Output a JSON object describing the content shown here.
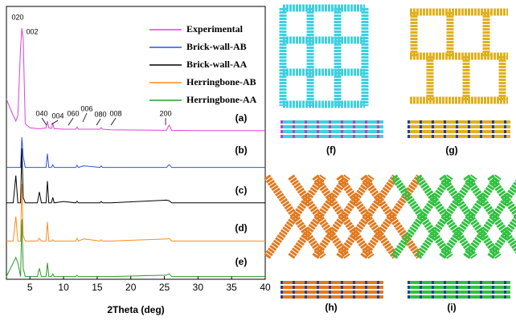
{
  "chart_data": {
    "type": "line",
    "x_label": "2Theta (deg)",
    "x": [
      1.5,
      2.5,
      2.9,
      3.2,
      3.6,
      3.8,
      4.0,
      4.3,
      5,
      6.1,
      6.4,
      6.7,
      7.4,
      7.6,
      7.8,
      8.2,
      8.4,
      8.6,
      10,
      11.8,
      12.0,
      12.2,
      13.0,
      15.4,
      15.6,
      15.8,
      17,
      25.3,
      25.7,
      26.1,
      30,
      40
    ],
    "series": [
      {
        "name": "Experimental",
        "color": "#e040e0",
        "values": [
          66,
          60,
          58,
          60,
          85,
          92,
          88,
          57,
          55.5,
          55.2,
          55.2,
          55.2,
          55.5,
          58,
          55.5,
          55.3,
          57,
          55.2,
          55,
          55,
          55.8,
          55,
          55,
          55,
          55.6,
          55,
          54.8,
          54.6,
          56.5,
          54.6,
          54.5,
          54.5
        ]
      },
      {
        "name": "Brick-wall-AB",
        "color": "#3050d8",
        "values": [
          41,
          41,
          41,
          41,
          41,
          52,
          45,
          41,
          41,
          41,
          41,
          41,
          41,
          46,
          41,
          41,
          42,
          41,
          41,
          41,
          41.8,
          41,
          41.6,
          41,
          41.5,
          41,
          41,
          41,
          42,
          41,
          41,
          41
        ]
      },
      {
        "name": "Brick-wall-AA",
        "color": "#000000",
        "values": [
          28,
          28,
          38,
          28,
          28,
          48,
          30,
          28,
          28,
          28,
          32,
          28,
          28,
          36,
          28,
          28,
          30,
          28,
          28.5,
          28,
          28.6,
          28,
          28,
          28,
          28.5,
          28,
          28,
          29,
          28.8,
          28,
          28,
          28
        ]
      },
      {
        "name": "Herringbone-AB",
        "color": "#ff8c1a",
        "values": [
          14,
          14,
          23,
          14,
          14,
          35,
          16,
          14,
          14,
          14,
          15,
          14,
          14,
          21,
          14,
          14,
          14.5,
          14,
          14,
          14,
          15,
          14,
          14.8,
          14,
          14.5,
          14,
          14,
          14.8,
          15,
          14,
          14,
          14
        ]
      },
      {
        "name": "Herringbone-AA",
        "color": "#2a9a2a",
        "values": [
          1,
          6,
          8,
          6,
          1,
          22,
          4,
          1,
          1,
          1,
          4,
          1,
          1,
          6,
          1,
          1,
          2,
          1,
          1,
          1,
          1.5,
          1,
          1,
          1,
          1,
          1,
          1,
          1.5,
          2,
          1,
          1,
          1
        ]
      }
    ],
    "xlim": [
      1.5,
      40
    ],
    "xticks": [
      5,
      10,
      15,
      20,
      25,
      30,
      35,
      40
    ],
    "ylim": [
      0,
      100
    ],
    "peak_labels": [
      "020",
      "002",
      "040",
      "004",
      "060",
      "006",
      "080",
      "008",
      "200"
    ],
    "trace_labels": [
      "(a)",
      "(b)",
      "(c)",
      "(d)",
      "(e)"
    ]
  },
  "panel_labels": [
    "(f)",
    "(g)",
    "(h)",
    "(i)"
  ]
}
